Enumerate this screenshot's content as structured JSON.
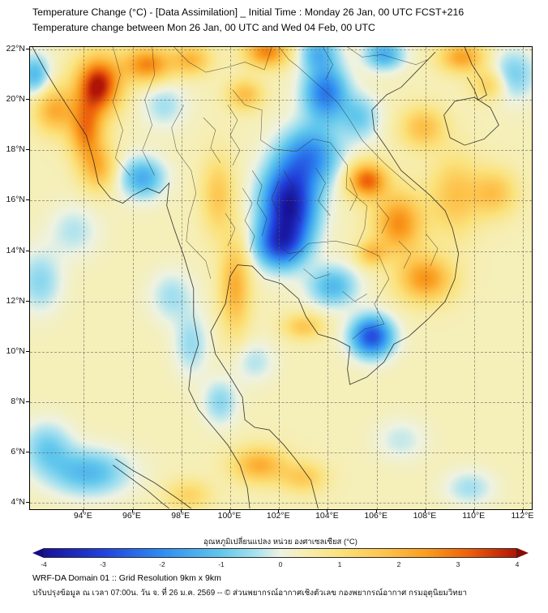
{
  "header": {
    "title_line1": "Temperature Change (°C) - [Data Assimilation] _ Initial Time : Monday 26 Jan, 00 UTC FCST+216",
    "title_line2": "Temperature change between Mon 26 Jan, 00 UTC and Wed 04 Feb, 00 UTC"
  },
  "axes": {
    "x_ticks": [
      "94°E",
      "96°E",
      "98°E",
      "100°E",
      "102°E",
      "104°E",
      "106°E",
      "108°E",
      "110°E",
      "112°E"
    ],
    "y_ticks": [
      "22°N",
      "20°N",
      "18°N",
      "16°N",
      "14°N",
      "12°N",
      "10°N",
      "8°N",
      "6°N",
      "4°N"
    ]
  },
  "colorbar": {
    "label": "อุณหภูมิเปลี่ยนแปลง หน่วย องศาเซลเซียส (°C)",
    "tick_labels": [
      "-4",
      "-3",
      "-2",
      "-1",
      "0",
      "1",
      "2",
      "3",
      "4"
    ],
    "min": -4,
    "max": 4,
    "under_color": "#120d85",
    "over_color": "#8a0b02"
  },
  "footer": {
    "line1": "WRF-DA Domain 01 :: Grid Resolution 9km x 9km",
    "line2": "ปรับปรุงข้อมูล ณ เวลา 07:00น. วัน จ. ที่ 26 ม.ค. 2569 -- © ส่วนพยากรณ์อากาศเชิงตัวเลข กองพยากรณ์อากาศ กรมอุตุนิยมวิทยา"
  },
  "chart_data": {
    "type": "heatmap",
    "title": "Temperature change between Mon 26 Jan, 00 UTC and Wed 04 Feb, 00 UTC",
    "units": "°C",
    "value_range": [
      -4,
      4
    ],
    "x_range_deg_east": [
      91.8,
      112.35
    ],
    "y_range_deg_north": [
      3.75,
      22.1
    ],
    "x_tick_values": [
      94,
      96,
      98,
      100,
      102,
      104,
      106,
      108,
      110,
      112
    ],
    "y_tick_values": [
      22,
      20,
      18,
      16,
      14,
      12,
      10,
      8,
      6,
      4
    ],
    "grid": true,
    "legend_position": "bottom",
    "overlays": [
      "coastlines",
      "country and province boundaries"
    ],
    "background_value": 0.35,
    "colormap": [
      {
        "v": -4.0,
        "c": "#18129a"
      },
      {
        "v": -3.0,
        "c": "#2242dc"
      },
      {
        "v": -2.0,
        "c": "#2f8df2"
      },
      {
        "v": -1.0,
        "c": "#62c8ec"
      },
      {
        "v": -0.4,
        "c": "#abe2ef"
      },
      {
        "v": 0.0,
        "c": "#eef3e2"
      },
      {
        "v": 0.4,
        "c": "#f6eeb3"
      },
      {
        "v": 1.0,
        "c": "#fbe27c"
      },
      {
        "v": 1.8,
        "c": "#fdc24a"
      },
      {
        "v": 2.5,
        "c": "#f99b1d"
      },
      {
        "v": 3.2,
        "c": "#ee5f0a"
      },
      {
        "v": 4.0,
        "c": "#b01407"
      }
    ],
    "anomaly_centers": [
      {
        "lon": 102.4,
        "lat": 15.8,
        "value": -4.2,
        "rx": 1.1,
        "ry": 1.6
      },
      {
        "lon": 102.0,
        "lat": 14.2,
        "value": -2.4,
        "rx": 1.0,
        "ry": 0.9
      },
      {
        "lon": 103.3,
        "lat": 17.8,
        "value": -2.2,
        "rx": 1.2,
        "ry": 1.2
      },
      {
        "lon": 103.9,
        "lat": 20.3,
        "value": -2.6,
        "rx": 0.9,
        "ry": 1.1
      },
      {
        "lon": 103.6,
        "lat": 21.9,
        "value": -1.5,
        "rx": 0.8,
        "ry": 0.7
      },
      {
        "lon": 106.3,
        "lat": 21.8,
        "value": -1.8,
        "rx": 0.8,
        "ry": 0.6
      },
      {
        "lon": 105.3,
        "lat": 19.3,
        "value": -1.2,
        "rx": 0.8,
        "ry": 0.9
      },
      {
        "lon": 104.2,
        "lat": 12.6,
        "value": -1.6,
        "rx": 1.0,
        "ry": 0.8
      },
      {
        "lon": 105.8,
        "lat": 10.6,
        "value": -3.2,
        "rx": 0.85,
        "ry": 0.8
      },
      {
        "lon": 96.4,
        "lat": 16.9,
        "value": -1.8,
        "rx": 0.9,
        "ry": 0.8
      },
      {
        "lon": 92.0,
        "lat": 21.0,
        "value": -1.6,
        "rx": 0.6,
        "ry": 0.8
      },
      {
        "lon": 92.2,
        "lat": 12.8,
        "value": -1.0,
        "rx": 0.9,
        "ry": 1.2
      },
      {
        "lon": 94.2,
        "lat": 5.2,
        "value": -1.6,
        "rx": 1.6,
        "ry": 0.9
      },
      {
        "lon": 92.5,
        "lat": 6.2,
        "value": -1.2,
        "rx": 1.0,
        "ry": 1.0
      },
      {
        "lon": 99.6,
        "lat": 8.0,
        "value": -1.0,
        "rx": 0.7,
        "ry": 0.9
      },
      {
        "lon": 111.6,
        "lat": 21.0,
        "value": -1.2,
        "rx": 0.9,
        "ry": 1.0
      },
      {
        "lon": 97.3,
        "lat": 19.8,
        "value": -0.8,
        "rx": 0.9,
        "ry": 0.9
      },
      {
        "lon": 107.0,
        "lat": 6.5,
        "value": -0.6,
        "rx": 1.0,
        "ry": 0.8
      },
      {
        "lon": 101.0,
        "lat": 9.6,
        "value": -0.7,
        "rx": 0.8,
        "ry": 0.8
      },
      {
        "lon": 93.6,
        "lat": 14.8,
        "value": -0.7,
        "rx": 1.0,
        "ry": 1.0
      },
      {
        "lon": 98.4,
        "lat": 10.3,
        "value": -0.9,
        "rx": 0.7,
        "ry": 1.2
      },
      {
        "lon": 97.6,
        "lat": 12.2,
        "value": -0.8,
        "rx": 0.9,
        "ry": 1.0
      },
      {
        "lon": 109.8,
        "lat": 4.6,
        "value": -0.8,
        "rx": 1.0,
        "ry": 0.7
      },
      {
        "lon": 94.6,
        "lat": 20.6,
        "value": 3.6,
        "rx": 0.9,
        "ry": 1.1
      },
      {
        "lon": 94.1,
        "lat": 18.8,
        "value": 2.4,
        "rx": 0.7,
        "ry": 1.2
      },
      {
        "lon": 94.6,
        "lat": 17.3,
        "value": 1.6,
        "rx": 0.7,
        "ry": 0.9
      },
      {
        "lon": 92.8,
        "lat": 19.6,
        "value": 1.8,
        "rx": 0.8,
        "ry": 0.9
      },
      {
        "lon": 96.6,
        "lat": 21.4,
        "value": 2.4,
        "rx": 1.0,
        "ry": 0.7
      },
      {
        "lon": 98.4,
        "lat": 21.6,
        "value": 1.6,
        "rx": 0.8,
        "ry": 0.6
      },
      {
        "lon": 101.5,
        "lat": 21.9,
        "value": 2.4,
        "rx": 0.9,
        "ry": 0.6
      },
      {
        "lon": 100.6,
        "lat": 20.2,
        "value": 1.5,
        "rx": 0.7,
        "ry": 0.6
      },
      {
        "lon": 109.5,
        "lat": 21.7,
        "value": 2.0,
        "rx": 0.9,
        "ry": 0.6
      },
      {
        "lon": 110.6,
        "lat": 20.6,
        "value": 1.2,
        "rx": 0.7,
        "ry": 0.6
      },
      {
        "lon": 105.6,
        "lat": 16.8,
        "value": 2.8,
        "rx": 0.8,
        "ry": 0.7
      },
      {
        "lon": 106.9,
        "lat": 15.1,
        "value": 2.3,
        "rx": 1.0,
        "ry": 1.2
      },
      {
        "lon": 108.0,
        "lat": 12.9,
        "value": 2.2,
        "rx": 1.1,
        "ry": 0.9
      },
      {
        "lon": 109.2,
        "lat": 16.2,
        "value": 1.4,
        "rx": 1.0,
        "ry": 1.5
      },
      {
        "lon": 110.8,
        "lat": 16.3,
        "value": 1.4,
        "rx": 0.9,
        "ry": 0.9
      },
      {
        "lon": 107.9,
        "lat": 18.9,
        "value": 1.5,
        "rx": 0.9,
        "ry": 0.8
      },
      {
        "lon": 100.2,
        "lat": 12.6,
        "value": 1.8,
        "rx": 0.6,
        "ry": 1.8
      },
      {
        "lon": 99.5,
        "lat": 16.2,
        "value": 1.3,
        "rx": 0.65,
        "ry": 1.5
      },
      {
        "lon": 101.2,
        "lat": 5.5,
        "value": 1.8,
        "rx": 1.1,
        "ry": 0.7
      },
      {
        "lon": 103.0,
        "lat": 5.0,
        "value": 1.2,
        "rx": 0.9,
        "ry": 0.6
      },
      {
        "lon": 98.3,
        "lat": 4.3,
        "value": 1.0,
        "rx": 0.9,
        "ry": 0.6
      },
      {
        "lon": 105.8,
        "lat": 13.9,
        "value": 1.4,
        "rx": 0.6,
        "ry": 0.5
      },
      {
        "lon": 103.0,
        "lat": 11.0,
        "value": 1.3,
        "rx": 0.8,
        "ry": 0.5
      }
    ]
  }
}
